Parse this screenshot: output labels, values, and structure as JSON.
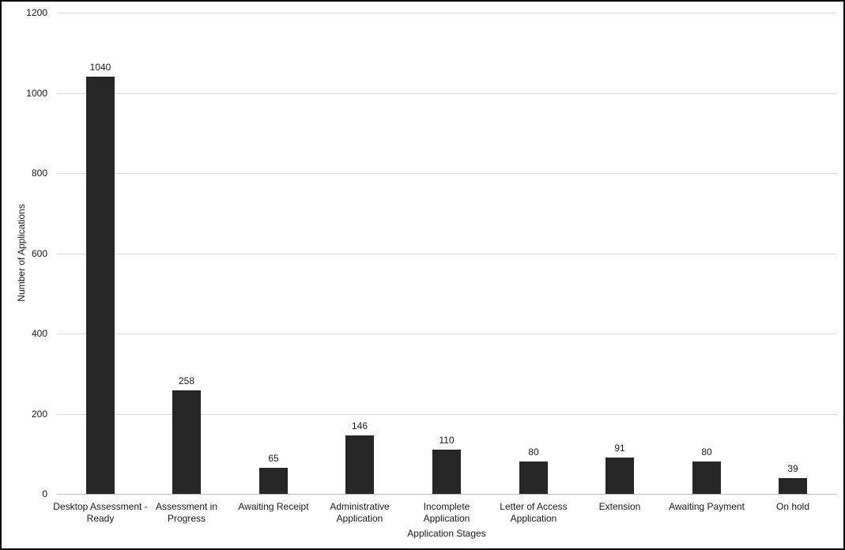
{
  "chart_data": {
    "type": "bar",
    "categories": [
      "Desktop Assessment - Ready",
      "Assessment in Progress",
      "Awaiting Receipt",
      "Administrative Application",
      "Incomplete Application",
      "Letter of Access Application",
      "Extension",
      "Awaiting Payment",
      "On hold"
    ],
    "category_lines": [
      [
        "Desktop Assessment -",
        "Ready"
      ],
      [
        "Assessment in",
        "Progress"
      ],
      [
        "Awaiting Receipt"
      ],
      [
        "Administrative",
        "Application"
      ],
      [
        "Incomplete",
        "Application"
      ],
      [
        "Letter of Access",
        "Application"
      ],
      [
        "Extension"
      ],
      [
        "Awaiting Payment"
      ],
      [
        "On hold"
      ]
    ],
    "values": [
      1040,
      258,
      65,
      146,
      110,
      80,
      91,
      80,
      39
    ],
    "data_labels": [
      "1040",
      "258",
      "65",
      "146",
      "110",
      "80",
      "91",
      "80",
      "39"
    ],
    "title": "",
    "xlabel": "Application Stages",
    "ylabel": "Number of Applications",
    "ylim": [
      0,
      1200
    ],
    "yticks": [
      0,
      200,
      400,
      600,
      800,
      1000,
      1200
    ],
    "grid": true,
    "legend": "none",
    "colors": {
      "bar": "#262626",
      "gridline": "#d9d9d9",
      "axis_line": "#bfbfbf",
      "text": "#1a1a1a",
      "border": "#000000",
      "background": "#ffffff"
    }
  }
}
